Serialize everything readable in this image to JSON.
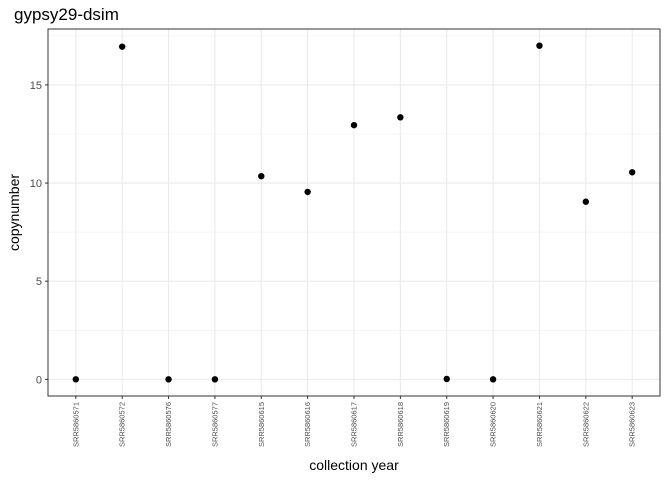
{
  "chart_data": {
    "type": "scatter",
    "title": "gypsy29-dsim",
    "xlabel": "collection year",
    "ylabel": "copynumber",
    "categories": [
      "SRR5860571",
      "SRR5860572",
      "SRR5860576",
      "SRR5860577",
      "SRR5860615",
      "SRR5860616",
      "SRR5860617",
      "SRR5860618",
      "SRR5860619",
      "SRR5860620",
      "SRR5860621",
      "SRR5860622",
      "SRR5860623"
    ],
    "values": [
      0.0,
      16.95,
      0.0,
      0.0,
      10.35,
      9.55,
      12.95,
      13.35,
      0.02,
      0.0,
      17.0,
      9.05,
      10.55
    ],
    "yticks": [
      0,
      5,
      10,
      15
    ],
    "ylim": [
      -0.85,
      17.85
    ],
    "grid": true,
    "point_color": "#000000",
    "panel_border_color": "#333333",
    "grid_major_color": "#ebebeb"
  }
}
